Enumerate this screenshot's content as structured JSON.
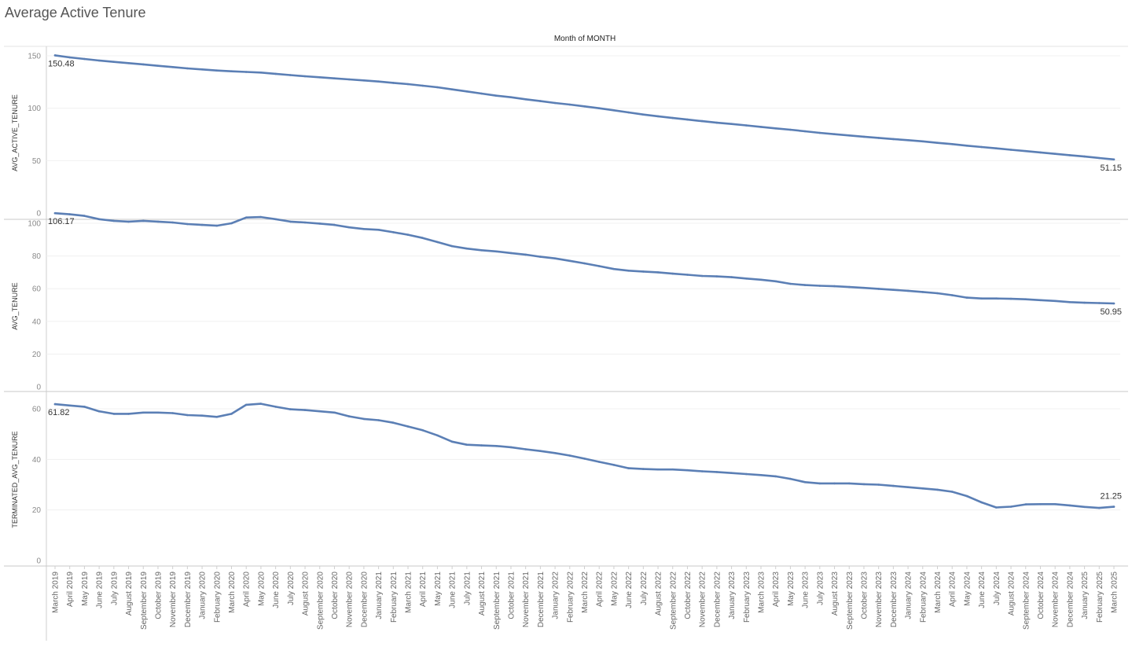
{
  "title": "Average Active Tenure",
  "chart_data": {
    "type": "line",
    "column_header": "Month of MONTH",
    "line_color": "#5b7fb5",
    "grid": true,
    "x": [
      "March 2019",
      "April 2019",
      "May 2019",
      "June 2019",
      "July 2019",
      "August 2019",
      "September 2019",
      "October 2019",
      "November 2019",
      "December 2019",
      "January 2020",
      "February 2020",
      "March 2020",
      "April 2020",
      "May 2020",
      "June 2020",
      "July 2020",
      "August 2020",
      "September 2020",
      "October 2020",
      "November 2020",
      "December 2020",
      "January 2021",
      "February 2021",
      "March 2021",
      "April 2021",
      "May 2021",
      "June 2021",
      "July 2021",
      "August 2021",
      "September 2021",
      "October 2021",
      "November 2021",
      "December 2021",
      "January 2022",
      "February 2022",
      "March 2022",
      "April 2022",
      "May 2022",
      "June 2022",
      "July 2022",
      "August 2022",
      "September 2022",
      "October 2022",
      "November 2022",
      "December 2022",
      "January 2023",
      "February 2023",
      "March 2023",
      "April 2023",
      "May 2023",
      "June 2023",
      "July 2023",
      "August 2023",
      "September 2023",
      "October 2023",
      "November 2023",
      "December 2023",
      "January 2024",
      "February 2024",
      "March 2024",
      "April 2024",
      "May 2024",
      "June 2024",
      "July 2024",
      "August 2024",
      "September 2024",
      "October 2024",
      "November 2024",
      "December 2024",
      "January 2025",
      "February 2025",
      "March 2025"
    ],
    "panels": [
      {
        "ylabel": "AVG_ACTIVE_TENURE",
        "ylim": [
          0,
          155
        ],
        "yticks": [
          0,
          50,
          100,
          150
        ],
        "first_label": "150.48",
        "last_label": "51.15",
        "values": [
          150.48,
          148.5,
          147.0,
          145.5,
          144.2,
          143.0,
          141.8,
          140.5,
          139.3,
          138.0,
          137.0,
          136.0,
          135.2,
          134.6,
          134.0,
          132.8,
          131.6,
          130.5,
          129.5,
          128.5,
          127.5,
          126.5,
          125.5,
          124.2,
          123.0,
          121.5,
          120.0,
          118.0,
          116.0,
          114.0,
          112.0,
          110.5,
          108.5,
          106.8,
          105.0,
          103.5,
          101.8,
          100.0,
          98.0,
          96.0,
          94.0,
          92.3,
          90.7,
          89.2,
          87.7,
          86.2,
          85.0,
          83.6,
          82.2,
          80.8,
          79.5,
          78.0,
          76.5,
          75.2,
          74.0,
          72.8,
          71.7,
          70.6,
          69.5,
          68.4,
          67.0,
          65.8,
          64.3,
          63.0,
          61.7,
          60.4,
          59.1,
          57.8,
          56.5,
          55.2,
          53.9,
          52.5,
          51.15
        ]
      },
      {
        "ylabel": "AVG_TENURE",
        "ylim": [
          0,
          110
        ],
        "yticks": [
          0,
          20,
          40,
          60,
          80,
          100
        ],
        "first_label": "106.17",
        "last_label": "50.95",
        "values": [
          106.17,
          105.5,
          104.5,
          102.5,
          101.5,
          101.0,
          101.5,
          101.0,
          100.5,
          99.5,
          99.0,
          98.5,
          100.0,
          103.5,
          103.8,
          102.5,
          101.0,
          100.5,
          99.8,
          99.0,
          97.5,
          96.5,
          96.0,
          94.5,
          93.0,
          91.0,
          88.5,
          86.0,
          84.5,
          83.5,
          82.8,
          81.8,
          80.8,
          79.5,
          78.5,
          77.0,
          75.5,
          73.8,
          72.0,
          71.0,
          70.5,
          70.0,
          69.2,
          68.5,
          67.8,
          67.5,
          67.0,
          66.2,
          65.5,
          64.5,
          63.0,
          62.2,
          61.8,
          61.5,
          61.0,
          60.5,
          59.9,
          59.3,
          58.7,
          58.0,
          57.2,
          56.0,
          54.5,
          54.0,
          54.0,
          53.8,
          53.5,
          53.0,
          52.5,
          51.8,
          51.4,
          51.2,
          50.95
        ]
      },
      {
        "ylabel": "TERMINATED_AVG_TENURE",
        "ylim": [
          0,
          63
        ],
        "yticks": [
          0,
          20,
          40,
          60
        ],
        "first_label": "61.82",
        "last_label": "21.25",
        "values": [
          61.82,
          61.3,
          60.8,
          59.0,
          58.0,
          58.0,
          58.5,
          58.5,
          58.3,
          57.5,
          57.3,
          56.8,
          58.0,
          61.6,
          62.0,
          60.8,
          59.8,
          59.5,
          59.0,
          58.5,
          57.0,
          56.0,
          55.5,
          54.5,
          53.0,
          51.5,
          49.5,
          47.0,
          45.8,
          45.5,
          45.3,
          44.8,
          44.0,
          43.3,
          42.5,
          41.5,
          40.3,
          39.0,
          37.8,
          36.5,
          36.2,
          36.0,
          36.0,
          35.7,
          35.3,
          35.0,
          34.6,
          34.2,
          33.8,
          33.3,
          32.3,
          31.0,
          30.5,
          30.5,
          30.5,
          30.2,
          30.0,
          29.5,
          29.0,
          28.5,
          28.0,
          27.2,
          25.5,
          23.0,
          21.0,
          21.3,
          22.2,
          22.3,
          22.3,
          21.8,
          21.2,
          20.8,
          21.25
        ]
      }
    ]
  }
}
